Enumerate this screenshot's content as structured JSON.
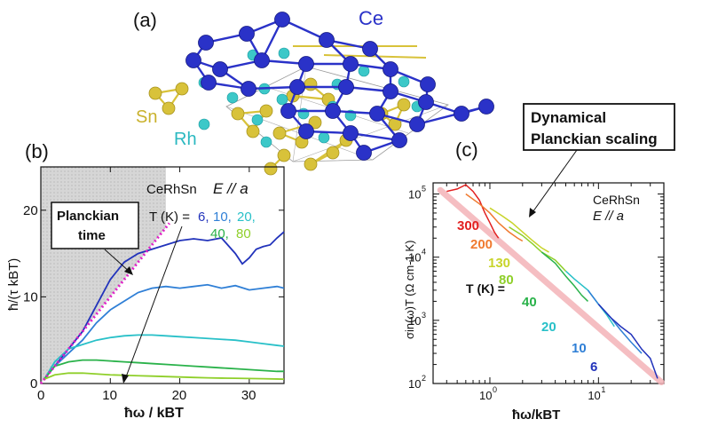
{
  "figure": {
    "panel_a": {
      "letter": "(a)",
      "labels": {
        "ce": "Ce",
        "sn": "Sn",
        "rh": "Rh"
      },
      "colors": {
        "ce": "#2a32c8",
        "sn": "#d8c23a",
        "rh": "#3cc8c8"
      }
    },
    "panel_b": {
      "letter": "(b)",
      "sample": "CeRhSn",
      "polarization": "E // a",
      "t_label": "T (K) =",
      "legend": [
        {
          "text": "6",
          "color": "#2233bb"
        },
        {
          "text": "10",
          "color": "#2f7fd6"
        },
        {
          "text": "20",
          "color": "#28c0c8"
        },
        {
          "text": "40",
          "color": "#2ab24a"
        },
        {
          "text": "80",
          "color": "#8fcf2a"
        }
      ],
      "callout": {
        "line1": "Planckian",
        "line2": "time"
      },
      "xlabel": "ħω / kBT",
      "ylabel": "ħ/(τ kBT)"
    },
    "panel_c": {
      "letter": "(c)",
      "sample": "CeRhSn",
      "polarization": "E // a",
      "t_label": "T (K) =",
      "callout": {
        "line1": "Dynamical",
        "line2": "Planckian scaling"
      },
      "temp_labels": [
        {
          "text": "300",
          "color": "#e22020"
        },
        {
          "text": "200",
          "color": "#f07a30"
        },
        {
          "text": "130",
          "color": "#c8d42a"
        },
        {
          "text": "80",
          "color": "#8fcf2a"
        },
        {
          "text": "40",
          "color": "#2ab24a"
        },
        {
          "text": "20",
          "color": "#28c0c8"
        },
        {
          "text": "10",
          "color": "#2f7fd6"
        },
        {
          "text": "6",
          "color": "#2233bb"
        }
      ],
      "xlabel": "ħω/kBT",
      "ylabel": "σin(ω)T (Ω cm-1 K)"
    }
  },
  "chart_data": [
    {
      "type": "line",
      "xlabel": "ħω / kBT",
      "ylabel": "ħ/(τ kBT)",
      "xlim": [
        0,
        35
      ],
      "ylim": [
        0,
        25
      ],
      "xticks": [
        0,
        10,
        20,
        30
      ],
      "yticks": [
        0,
        10,
        20
      ],
      "series": [
        {
          "name": "6",
          "color": "#2233bb",
          "x": [
            0.5,
            2,
            4,
            6,
            8,
            10,
            12,
            14,
            16,
            18,
            20,
            22,
            24,
            26,
            28,
            29,
            30,
            31,
            32,
            33,
            34,
            35
          ],
          "y": [
            0.5,
            2,
            4,
            6,
            9,
            12,
            14,
            15,
            15.5,
            16,
            16.5,
            16.7,
            16.5,
            16.8,
            15,
            13.8,
            14.5,
            15.5,
            15.8,
            16,
            16.8,
            17.5
          ]
        },
        {
          "name": "10",
          "color": "#2f7fd6",
          "x": [
            0.5,
            2,
            4,
            6,
            8,
            10,
            12,
            14,
            16,
            18,
            20,
            22,
            24,
            26,
            28,
            30,
            32,
            34,
            35
          ],
          "y": [
            0.5,
            2,
            3.5,
            5,
            7,
            8.5,
            9.5,
            10.5,
            11,
            11.2,
            11,
            11.2,
            11.4,
            11,
            11.3,
            10.8,
            11,
            11.2,
            11
          ]
        },
        {
          "name": "20",
          "color": "#28c0c8",
          "x": [
            0.5,
            2,
            4,
            6,
            8,
            10,
            12,
            14,
            16,
            18,
            20,
            22,
            24,
            26,
            28,
            30,
            32,
            34,
            35
          ],
          "y": [
            0.5,
            2.5,
            4,
            4.5,
            5,
            5.3,
            5.5,
            5.6,
            5.6,
            5.5,
            5.4,
            5.3,
            5.2,
            5.1,
            5,
            4.8,
            4.6,
            4.4,
            4.3
          ]
        },
        {
          "name": "40",
          "color": "#2ab24a",
          "x": [
            0.5,
            2,
            4,
            6,
            8,
            10,
            12,
            14,
            16,
            18,
            20,
            22,
            24,
            26,
            28,
            30,
            32,
            34,
            35
          ],
          "y": [
            0.5,
            2,
            2.5,
            2.7,
            2.7,
            2.6,
            2.5,
            2.4,
            2.3,
            2.2,
            2.1,
            2,
            1.9,
            1.8,
            1.7,
            1.6,
            1.5,
            1.4,
            1.4
          ]
        },
        {
          "name": "80",
          "color": "#8fcf2a",
          "x": [
            0.5,
            2,
            4,
            6,
            8,
            10,
            12,
            14,
            16,
            18,
            20,
            22,
            24,
            26,
            28,
            30,
            32,
            34,
            35
          ],
          "y": [
            0.5,
            1,
            1.2,
            1.2,
            1.1,
            1,
            0.95,
            0.9,
            0.85,
            0.8,
            0.75,
            0.7,
            0.65,
            0.62,
            0.6,
            0.58,
            0.55,
            0.52,
            0.5
          ]
        }
      ]
    },
    {
      "type": "line",
      "xlabel": "ħω/kBT",
      "ylabel": "σin(ω)T (Ω cm-1 K)",
      "xscale": "log",
      "yscale": "log",
      "xlim": [
        0.3,
        40
      ],
      "ylim": [
        100,
        150000
      ],
      "xticks": [
        "10^0",
        "10^1"
      ],
      "yticks": [
        "10^2",
        "10^3",
        "10^4",
        "10^5"
      ],
      "series": [
        {
          "name": "300",
          "color": "#e22020",
          "x": [
            0.4,
            0.5,
            0.6,
            0.7,
            0.8,
            0.9,
            1.0,
            1.1,
            1.2
          ],
          "y": [
            110000,
            120000,
            140000,
            110000,
            80000,
            50000,
            35000,
            25000,
            20000
          ]
        },
        {
          "name": "200",
          "color": "#f07a30",
          "x": [
            0.6,
            0.8,
            1.0,
            1.2,
            1.5,
            1.8,
            2.0
          ],
          "y": [
            100000,
            70000,
            50000,
            35000,
            25000,
            20000,
            18000
          ]
        },
        {
          "name": "130",
          "color": "#c8d42a",
          "x": [
            1.0,
            1.3,
            1.6,
            2.0,
            2.5,
            3.0,
            3.5
          ],
          "y": [
            60000,
            45000,
            35000,
            25000,
            18000,
            14000,
            12000
          ]
        },
        {
          "name": "80",
          "color": "#8fcf2a",
          "x": [
            1.5,
            2,
            2.5,
            3,
            4,
            5
          ],
          "y": [
            30000,
            22000,
            16000,
            12000,
            9000,
            6000
          ]
        },
        {
          "name": "40",
          "color": "#2ab24a",
          "x": [
            3,
            4,
            5,
            6,
            7,
            8
          ],
          "y": [
            12000,
            8000,
            5000,
            3500,
            2500,
            2000
          ]
        },
        {
          "name": "20",
          "color": "#28c0c8",
          "x": [
            5,
            6,
            8,
            10,
            12,
            14
          ],
          "y": [
            6000,
            4500,
            3000,
            1800,
            1200,
            800
          ]
        },
        {
          "name": "10",
          "color": "#2f7fd6",
          "x": [
            8,
            10,
            13,
            16,
            20,
            25
          ],
          "y": [
            3000,
            1800,
            1100,
            700,
            450,
            300
          ]
        },
        {
          "name": "6",
          "color": "#2233bb",
          "x": [
            10,
            13,
            16,
            20,
            25,
            30,
            35
          ],
          "y": [
            1800,
            1100,
            800,
            600,
            350,
            250,
            120
          ]
        }
      ]
    }
  ]
}
